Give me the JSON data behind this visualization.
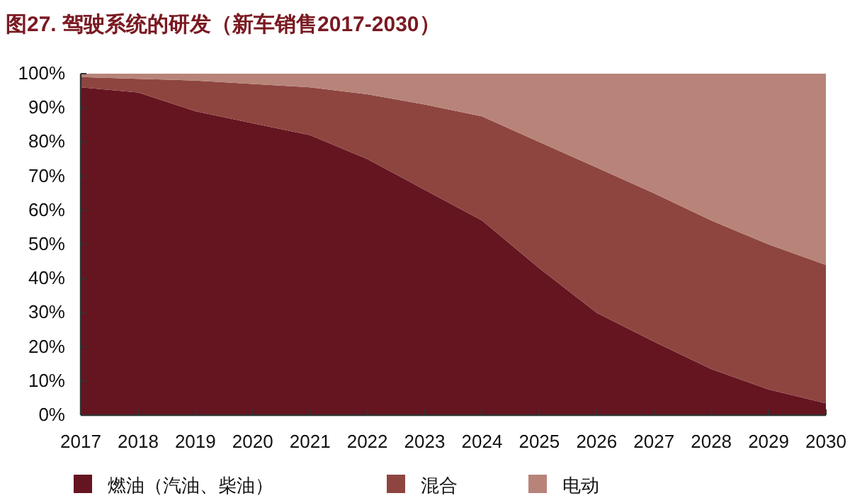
{
  "chart_data": {
    "type": "area",
    "title": "图27. 驾驶系统的研发（新车销售2017-2030）",
    "stacked": true,
    "categories": [
      "2017",
      "2018",
      "2019",
      "2020",
      "2021",
      "2022",
      "2023",
      "2024",
      "2025",
      "2026",
      "2027",
      "2028",
      "2029",
      "2030"
    ],
    "series": [
      {
        "name": "燃油（汽油、柴油）",
        "color": "#651520",
        "values": [
          96,
          94.5,
          89,
          85.5,
          82,
          75,
          66,
          57,
          43,
          30,
          21.5,
          13.5,
          7.5,
          3.5
        ]
      },
      {
        "name": "混合",
        "color": "#8e4540",
        "values": [
          3,
          4,
          9,
          11.5,
          14,
          19,
          25,
          30.5,
          37,
          42.5,
          43.5,
          43.5,
          42.5,
          40.5
        ]
      },
      {
        "name": "电动",
        "color": "#b8847a",
        "values": [
          1,
          1.5,
          2,
          3,
          4,
          6,
          9,
          12.5,
          20,
          27.5,
          35,
          43,
          50,
          56
        ]
      }
    ],
    "ylim": [
      0,
      100
    ],
    "yticks": [
      {
        "value": 0,
        "label": "0%"
      },
      {
        "value": 10,
        "label": "10%"
      },
      {
        "value": 20,
        "label": "20%"
      },
      {
        "value": 30,
        "label": "30%"
      },
      {
        "value": 40,
        "label": "40%"
      },
      {
        "value": 50,
        "label": "50%"
      },
      {
        "value": 60,
        "label": "60%"
      },
      {
        "value": 70,
        "label": "70%"
      },
      {
        "value": 80,
        "label": "80%"
      },
      {
        "value": 90,
        "label": "90%"
      },
      {
        "value": 100,
        "label": "100%"
      }
    ],
    "grid": false,
    "legend": "bottom"
  }
}
